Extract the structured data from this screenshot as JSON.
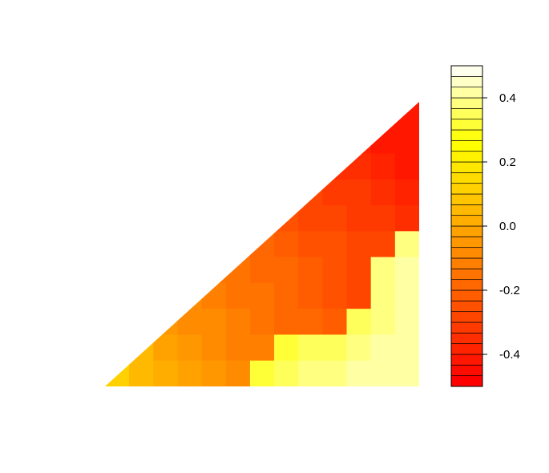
{
  "chart_data": {
    "type": "heatmap",
    "title": "",
    "xlabel": "",
    "ylabel": "",
    "region": "triangle",
    "grid_cols": 13,
    "grid_rows": 11,
    "color_scale": {
      "min": -0.5,
      "max": 0.5,
      "levels": 30,
      "ticks": [
        0.4,
        0.2,
        0.0,
        -0.2,
        -0.4
      ],
      "tick_labels": [
        "0.4",
        "0.2",
        "0.0",
        "-0.2",
        "-0.4"
      ]
    },
    "rows": [
      [
        -0.42,
        -0.42
      ],
      [
        -0.36,
        -0.38,
        -0.4,
        -0.42
      ],
      [
        -0.32,
        -0.34,
        -0.36,
        -0.38,
        -0.4
      ],
      [
        -0.27,
        -0.29,
        -0.31,
        -0.33,
        -0.35,
        -0.37
      ],
      [
        -0.23,
        -0.25,
        -0.27,
        -0.29,
        -0.31,
        -0.33,
        -0.35
      ],
      [
        -0.18,
        -0.2,
        -0.22,
        -0.24,
        -0.26,
        -0.28,
        -0.3,
        0.38
      ],
      [
        -0.14,
        -0.16,
        -0.18,
        -0.2,
        -0.22,
        -0.25,
        -0.27,
        0.38,
        0.4
      ],
      [
        -0.1,
        -0.12,
        -0.14,
        -0.16,
        -0.18,
        -0.21,
        -0.24,
        -0.27,
        0.38,
        0.4
      ],
      [
        -0.06,
        -0.08,
        -0.1,
        -0.12,
        -0.14,
        -0.17,
        -0.2,
        -0.23,
        0.36,
        0.38,
        0.4
      ],
      [
        0.04,
        -0.02,
        -0.05,
        -0.08,
        -0.11,
        -0.13,
        0.3,
        0.34,
        0.36,
        0.38,
        0.4,
        0.4
      ],
      [
        0.1,
        0.06,
        0.02,
        -0.02,
        -0.05,
        -0.08,
        0.33,
        0.36,
        0.38,
        0.39,
        0.4,
        0.4,
        0.4
      ]
    ]
  }
}
